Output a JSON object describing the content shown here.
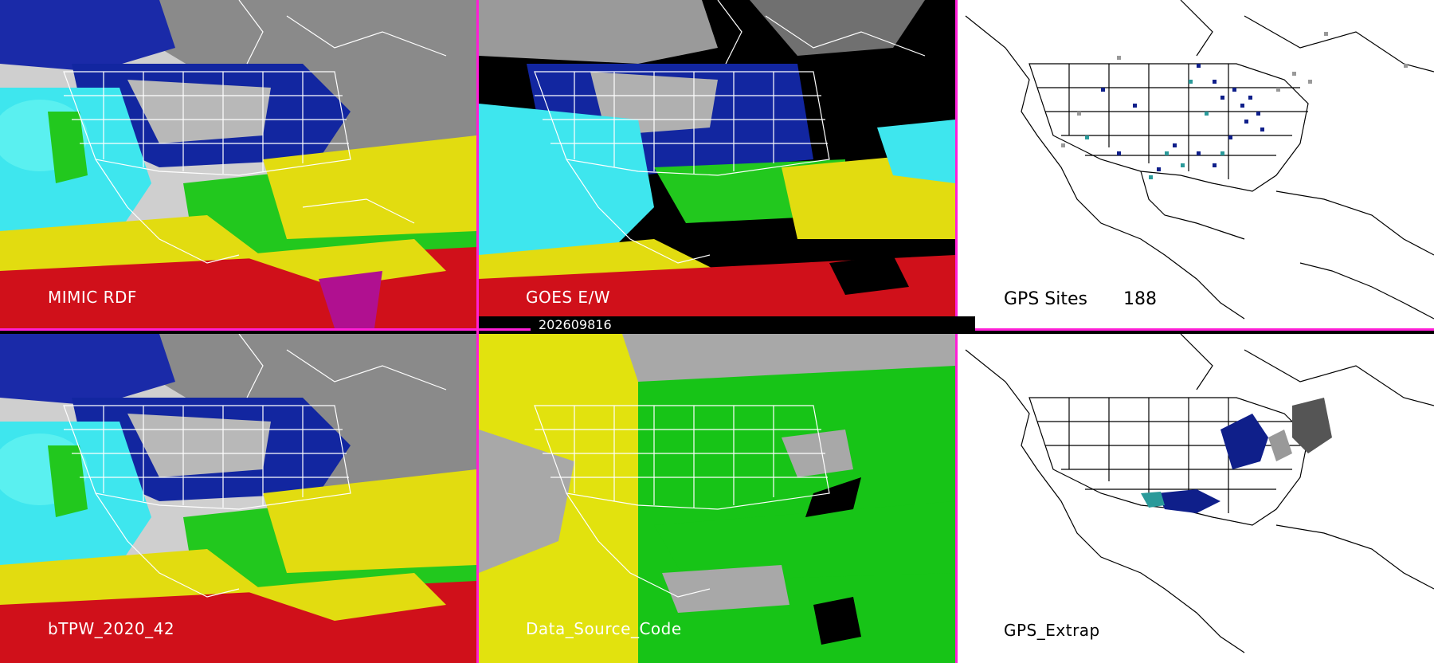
{
  "panels": {
    "top_left": {
      "label": "MIMIC RDF"
    },
    "top_middle": {
      "label": "GOES E/W"
    },
    "top_right": {
      "label": "GPS Sites",
      "count": "188"
    },
    "bottom_left": {
      "label": "bTPW_2020_42"
    },
    "bottom_middle": {
      "label": "Data_Source_Code"
    },
    "bottom_right": {
      "label": "GPS_Extrap"
    }
  },
  "timestamp": "202609816",
  "colors": {
    "divider": "#ff1fd7",
    "tpw_red": "#d0101a",
    "tpw_yellow": "#e2dc10",
    "tpw_green": "#22c81e",
    "tpw_cyan": "#3ee6ee",
    "tpw_blue": "#0a1a9a",
    "tpw_gray": "#a8a8a8",
    "map_outline": "#ffffff",
    "gps_navy": "#0f1f8a",
    "gps_teal": "#2a9a9a",
    "gps_gray": "#999999"
  }
}
